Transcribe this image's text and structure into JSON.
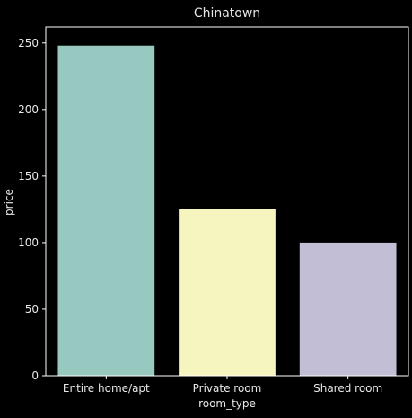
{
  "chart_data": {
    "type": "bar",
    "title": "Chinatown",
    "xlabel": "room_type",
    "ylabel": "price",
    "categories": [
      "Entire home/apt",
      "Private room",
      "Shared room"
    ],
    "values": [
      248,
      125,
      100
    ],
    "colors": [
      "#98c9c1",
      "#f6f5bf",
      "#c2bed5"
    ],
    "ylim": [
      0,
      262
    ],
    "yticks": [
      0,
      50,
      100,
      150,
      200,
      250
    ],
    "ytick_labels": [
      "0",
      "50",
      "100",
      "150",
      "200",
      "250"
    ],
    "grid": false,
    "background": "#000000",
    "axis_color": "#ffffff",
    "text_color": "#e8e8e8"
  }
}
